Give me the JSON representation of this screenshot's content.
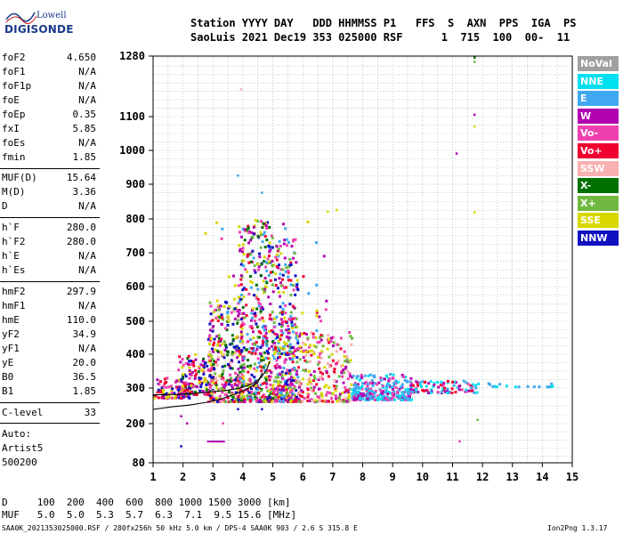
{
  "logo": {
    "line1": "Lowell",
    "line2": "DIGISONDE"
  },
  "header": {
    "row1": "Station YYYY DAY   DDD HHMMSS P1   FFS  S  AXN  PPS  IGA  PS",
    "row2": "SaoLuis 2021 Dec19 353 025000 RSF      1  715  100  00-  11"
  },
  "params": [
    {
      "name": "foF2",
      "value": "4.650"
    },
    {
      "name": "foF1",
      "value": "N/A"
    },
    {
      "name": "foF1p",
      "value": "N/A"
    },
    {
      "name": "foE",
      "value": "N/A"
    },
    {
      "name": "foEp",
      "value": "0.35"
    },
    {
      "name": "fxI",
      "value": "5.85"
    },
    {
      "name": "foEs",
      "value": "N/A"
    },
    {
      "name": "fmin",
      "value": "1.85"
    },
    {
      "name": "MUF(D)",
      "value": "15.64"
    },
    {
      "name": "M(D)",
      "value": "3.36"
    },
    {
      "name": "D",
      "value": "N/A"
    },
    {
      "name": "h`F",
      "value": "280.0"
    },
    {
      "name": "h`F2",
      "value": "280.0"
    },
    {
      "name": "h`E",
      "value": "N/A"
    },
    {
      "name": "h`Es",
      "value": "N/A"
    },
    {
      "name": "hmF2",
      "value": "297.9"
    },
    {
      "name": "hmF1",
      "value": "N/A"
    },
    {
      "name": "hmE",
      "value": "110.0"
    },
    {
      "name": "yF2",
      "value": "34.9"
    },
    {
      "name": "yF1",
      "value": "N/A"
    },
    {
      "name": "yE",
      "value": "20.0"
    },
    {
      "name": "B0",
      "value": "36.5"
    },
    {
      "name": "B1",
      "value": "1.85"
    },
    {
      "name": "C-level",
      "value": "33"
    }
  ],
  "autoscale": {
    "line1": "Auto:",
    "line2": "Artist5",
    "line3": "500200"
  },
  "legend": [
    {
      "label": "NoVal",
      "color": "#a0a0a0"
    },
    {
      "label": "NNE",
      "color": "#00e0f0"
    },
    {
      "label": "E",
      "color": "#40a8f0"
    },
    {
      "label": "W",
      "color": "#b000b0"
    },
    {
      "label": "Vo-",
      "color": "#f040b0"
    },
    {
      "label": "Vo+",
      "color": "#f00030"
    },
    {
      "label": "SSW",
      "color": "#f8b0b0"
    },
    {
      "label": "X-",
      "color": "#007000"
    },
    {
      "label": "X+",
      "color": "#70b840"
    },
    {
      "label": "SSE",
      "color": "#d8d800"
    },
    {
      "label": "NNW",
      "color": "#1010c0"
    }
  ],
  "muf_table": {
    "d_row": "D     100  200  400  600  800 1000 1500 3000 [km]",
    "muf_row": "MUF   5.0  5.0  5.3  5.7  6.3  7.1  9.5 15.6 [MHz]"
  },
  "footer": {
    "left": "SAA0K_2021353025000.RSF / 280fx256h 50 kHz 5.0 km / DPS-4 SAA0K 903 / 2.6 S 315.8 E",
    "right": "Ion2Png 1.3.17"
  },
  "chart_data": {
    "type": "scatter",
    "xlabel": "",
    "ylabel": "",
    "xlim": [
      1,
      15
    ],
    "ylim": [
      80,
      1280
    ],
    "x_ticks": [
      1,
      2,
      3,
      4,
      5,
      6,
      7,
      8,
      9,
      10,
      11,
      12,
      13,
      14,
      15
    ],
    "y_ticks": [
      80,
      200,
      300,
      400,
      500,
      600,
      700,
      800,
      900,
      1000,
      1100,
      1280
    ],
    "grid": true,
    "legend_position": "right",
    "clusters": [
      {
        "x0": 1.0,
        "x1": 2.2,
        "y0": 270,
        "y1": 330,
        "n": 110,
        "colors": [
          "#b000b0",
          "#f040b0",
          "#1010c0",
          "#f00030",
          "#d8d800"
        ]
      },
      {
        "x0": 1.8,
        "x1": 3.0,
        "y0": 280,
        "y1": 400,
        "n": 160,
        "colors": [
          "#b000b0",
          "#f040b0",
          "#1010c0",
          "#f00030",
          "#007000",
          "#d8d800"
        ]
      },
      {
        "x0": 2.8,
        "x1": 4.0,
        "y0": 260,
        "y1": 560,
        "n": 320,
        "colors": [
          "#b000b0",
          "#f040b0",
          "#1010c0",
          "#f00030",
          "#007000",
          "#70b840",
          "#d8d800",
          "#f8b0b0"
        ]
      },
      {
        "x0": 3.8,
        "x1": 5.0,
        "y0": 260,
        "y1": 800,
        "n": 440,
        "colors": [
          "#b000b0",
          "#f040b0",
          "#1010c0",
          "#f00030",
          "#007000",
          "#70b840",
          "#d8d800",
          "#40a8f0"
        ]
      },
      {
        "x0": 5.0,
        "x1": 5.8,
        "y0": 260,
        "y1": 740,
        "n": 360,
        "colors": [
          "#b000b0",
          "#f040b0",
          "#f00030",
          "#d8d800",
          "#70b840",
          "#1010c0",
          "#40a8f0"
        ]
      },
      {
        "x0": 5.8,
        "x1": 7.6,
        "y0": 260,
        "y1": 470,
        "n": 240,
        "colors": [
          "#b000b0",
          "#f040b0",
          "#f00030",
          "#d8d800",
          "#70b840",
          "#f8b0b0"
        ]
      },
      {
        "x0": 7.6,
        "x1": 9.6,
        "y0": 265,
        "y1": 340,
        "n": 280,
        "colors": [
          "#40a8f0",
          "#00e0f0",
          "#40a8f0",
          "#b000b0",
          "#f040b0"
        ]
      },
      {
        "x0": 9.6,
        "x1": 11.8,
        "y0": 285,
        "y1": 320,
        "n": 90,
        "colors": [
          "#40a8f0",
          "#b000b0",
          "#f040b0",
          "#f00030",
          "#00e0f0"
        ]
      },
      {
        "x0": 11.8,
        "x1": 14.4,
        "y0": 302,
        "y1": 312,
        "n": 18,
        "colors": [
          "#00e0f0",
          "#40a8f0"
        ]
      },
      {
        "x0": 2.6,
        "x1": 6.8,
        "y0": 400,
        "y1": 820,
        "n": 90,
        "colors": [
          "#d8d800",
          "#f040b0",
          "#f00030",
          "#40a8f0",
          "#b000b0"
        ]
      }
    ],
    "isolated_points": [
      {
        "x": 11.7,
        "y": 1275,
        "c": "#007000"
      },
      {
        "x": 11.7,
        "y": 1262,
        "c": "#70b840"
      },
      {
        "x": 11.7,
        "y": 1105,
        "c": "#b000b0"
      },
      {
        "x": 11.7,
        "y": 1070,
        "c": "#d8d800"
      },
      {
        "x": 11.1,
        "y": 990,
        "c": "#b000b0"
      },
      {
        "x": 11.7,
        "y": 818,
        "c": "#d8d800"
      },
      {
        "x": 3.8,
        "y": 925,
        "c": "#40a8f0"
      },
      {
        "x": 4.6,
        "y": 875,
        "c": "#40a8f0"
      },
      {
        "x": 3.9,
        "y": 1180,
        "c": "#f8b0b0"
      },
      {
        "x": 11.8,
        "y": 210,
        "c": "#70b840"
      },
      {
        "x": 11.2,
        "y": 145,
        "c": "#f040b0"
      },
      {
        "x": 3.8,
        "y": 240,
        "c": "#1010c0"
      },
      {
        "x": 4.6,
        "y": 240,
        "c": "#1010c0"
      },
      {
        "x": 3.3,
        "y": 200,
        "c": "#f040b0"
      },
      {
        "x": 1.9,
        "y": 220,
        "c": "#b000b0"
      },
      {
        "x": 2.1,
        "y": 200,
        "c": "#b000b0"
      },
      {
        "x": 1.9,
        "y": 130,
        "c": "#1010c0"
      },
      {
        "x": 7.1,
        "y": 825,
        "c": "#d8d800"
      },
      {
        "x": 6.8,
        "y": 820,
        "c": "#d8d800"
      }
    ],
    "segments": [
      {
        "x0": 2.8,
        "x1": 3.4,
        "y": 145,
        "c": "#b000b0"
      },
      {
        "x0": 1.1,
        "x1": 1.3,
        "y": 288,
        "c": "#f00030"
      }
    ],
    "traces": [
      {
        "name": "o-trace",
        "points": [
          [
            1.0,
            240
          ],
          [
            1.6,
            247
          ],
          [
            2.2,
            252
          ],
          [
            2.8,
            260
          ],
          [
            3.3,
            270
          ],
          [
            3.8,
            285
          ],
          [
            4.2,
            300
          ],
          [
            4.5,
            318
          ],
          [
            4.65,
            345
          ]
        ]
      },
      {
        "name": "x-trace",
        "points": [
          [
            1.0,
            281
          ],
          [
            1.8,
            282
          ],
          [
            2.4,
            285
          ],
          [
            3.0,
            290
          ],
          [
            3.5,
            294
          ],
          [
            3.9,
            300
          ],
          [
            4.3,
            312
          ],
          [
            4.6,
            330
          ],
          [
            4.8,
            355
          ],
          [
            4.9,
            380
          ]
        ]
      }
    ]
  }
}
